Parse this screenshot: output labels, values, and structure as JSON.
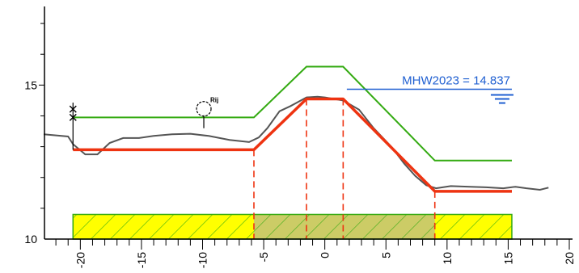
{
  "chart_data": {
    "type": "line",
    "title": "",
    "xlabel": "",
    "ylabel": "",
    "xlim": [
      -23,
      20
    ],
    "ylim": [
      10,
      17.5
    ],
    "x_ticks": [
      -20,
      -15,
      -10,
      -5,
      0,
      5,
      10,
      15,
      20
    ],
    "x_tick_labels": [
      "-20",
      "-15",
      "-10",
      "-5",
      "0",
      "5",
      "10",
      "15",
      "20"
    ],
    "y_ticks": [
      10,
      15
    ],
    "y_tick_labels": [
      "10",
      "15"
    ],
    "colors": {
      "terrain": "#555555",
      "profile": "#ee3311",
      "envelope": "#33aa11",
      "water": "#1f5fd1",
      "bar_fill": "#ffff00",
      "bar_fill_mid": "#cccc66",
      "bar_stripe": "#33aa11",
      "dashed": "#ee3311"
    },
    "terrain": {
      "x": [
        -23.0,
        -21.0,
        -20.6,
        -19.6,
        -18.6,
        -17.6,
        -16.5,
        -15.2,
        -14.0,
        -12.5,
        -11.0,
        -9.5,
        -7.8,
        -6.2,
        -5.4,
        -4.7,
        -3.7,
        -2.8,
        -1.5,
        -0.6,
        0.0,
        1.5,
        2.8,
        4.0,
        5.5,
        6.5,
        7.4,
        8.3,
        9.1,
        10.3,
        11.9,
        13.2,
        14.6,
        15.6,
        16.5,
        17.6,
        18.3
      ],
      "y": [
        13.4,
        13.33,
        13.08,
        12.75,
        12.75,
        13.12,
        13.28,
        13.28,
        13.35,
        13.4,
        13.42,
        13.35,
        13.22,
        13.15,
        13.3,
        13.6,
        14.15,
        14.32,
        14.6,
        14.62,
        14.6,
        14.5,
        14.2,
        13.6,
        12.97,
        12.45,
        12.05,
        11.75,
        11.65,
        11.72,
        11.7,
        11.68,
        11.65,
        11.7,
        11.65,
        11.6,
        11.67
      ]
    },
    "profile": {
      "x": [
        -20.6,
        -5.8,
        -1.5,
        1.5,
        9.0,
        15.3
      ],
      "y": [
        12.9,
        12.9,
        14.55,
        14.55,
        11.55,
        11.55
      ]
    },
    "envelope": {
      "x": [
        -20.6,
        -5.8,
        -1.5,
        1.5,
        9.0,
        15.3
      ],
      "y": [
        13.95,
        13.95,
        15.6,
        15.6,
        12.55,
        12.55
      ]
    },
    "dashed_guides_x": [
      -5.8,
      -1.5,
      1.5,
      9.0
    ],
    "base_bar": {
      "x_start": -20.6,
      "x_end": 15.3,
      "y_bottom": 10.0,
      "y_top": 10.8,
      "mid_x_start": -5.8,
      "mid_x_end": 9.0
    },
    "water_level": {
      "label": "MHW2023 = 14.837",
      "value": 14.837,
      "x_start": 1.8,
      "x_end": 15.3
    },
    "tree": {
      "label": "Rij",
      "x": -9.9,
      "y": 13.6
    },
    "markers": [
      {
        "kind": "cross",
        "x": -20.6,
        "y": 14.22
      },
      {
        "kind": "cross",
        "x": -20.6,
        "y": 13.95
      }
    ]
  }
}
